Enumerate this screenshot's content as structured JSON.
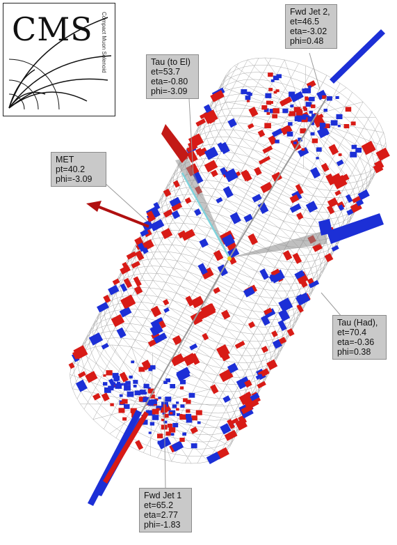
{
  "logo": {
    "text": "CMS",
    "subtitle": "Compact Muon Solenoid"
  },
  "labels": {
    "fwd_jet2": {
      "title": "Fwd Jet 2,",
      "et": "et=46.5",
      "eta": "eta=-3.02",
      "phi": "phi=0.48"
    },
    "tau_el": {
      "title": "Tau (to El)",
      "et": "et=53.7",
      "eta": "eta=-0.80",
      "phi": "phi=-3.09"
    },
    "met": {
      "title": "MET",
      "pt": "pt=40.2",
      "phi": "phi=-3.09"
    },
    "tau_had": {
      "title": "Tau (Had),",
      "et": "et=70.4",
      "eta": "eta=-0.36",
      "phi": "phi=0.38"
    },
    "fwd_jet1": {
      "title": "Fwd Jet 1",
      "et": "et=65.2",
      "eta": "eta=2.77",
      "phi": "phi=-1.83"
    }
  },
  "colors": {
    "hcal": "#1c2fd6",
    "ecal": "#d81b16",
    "grid": "#a8a8a8",
    "met_arrow": "#b01010",
    "electron_track": "#7fd3dc",
    "vertex": "#f2d21a"
  }
}
